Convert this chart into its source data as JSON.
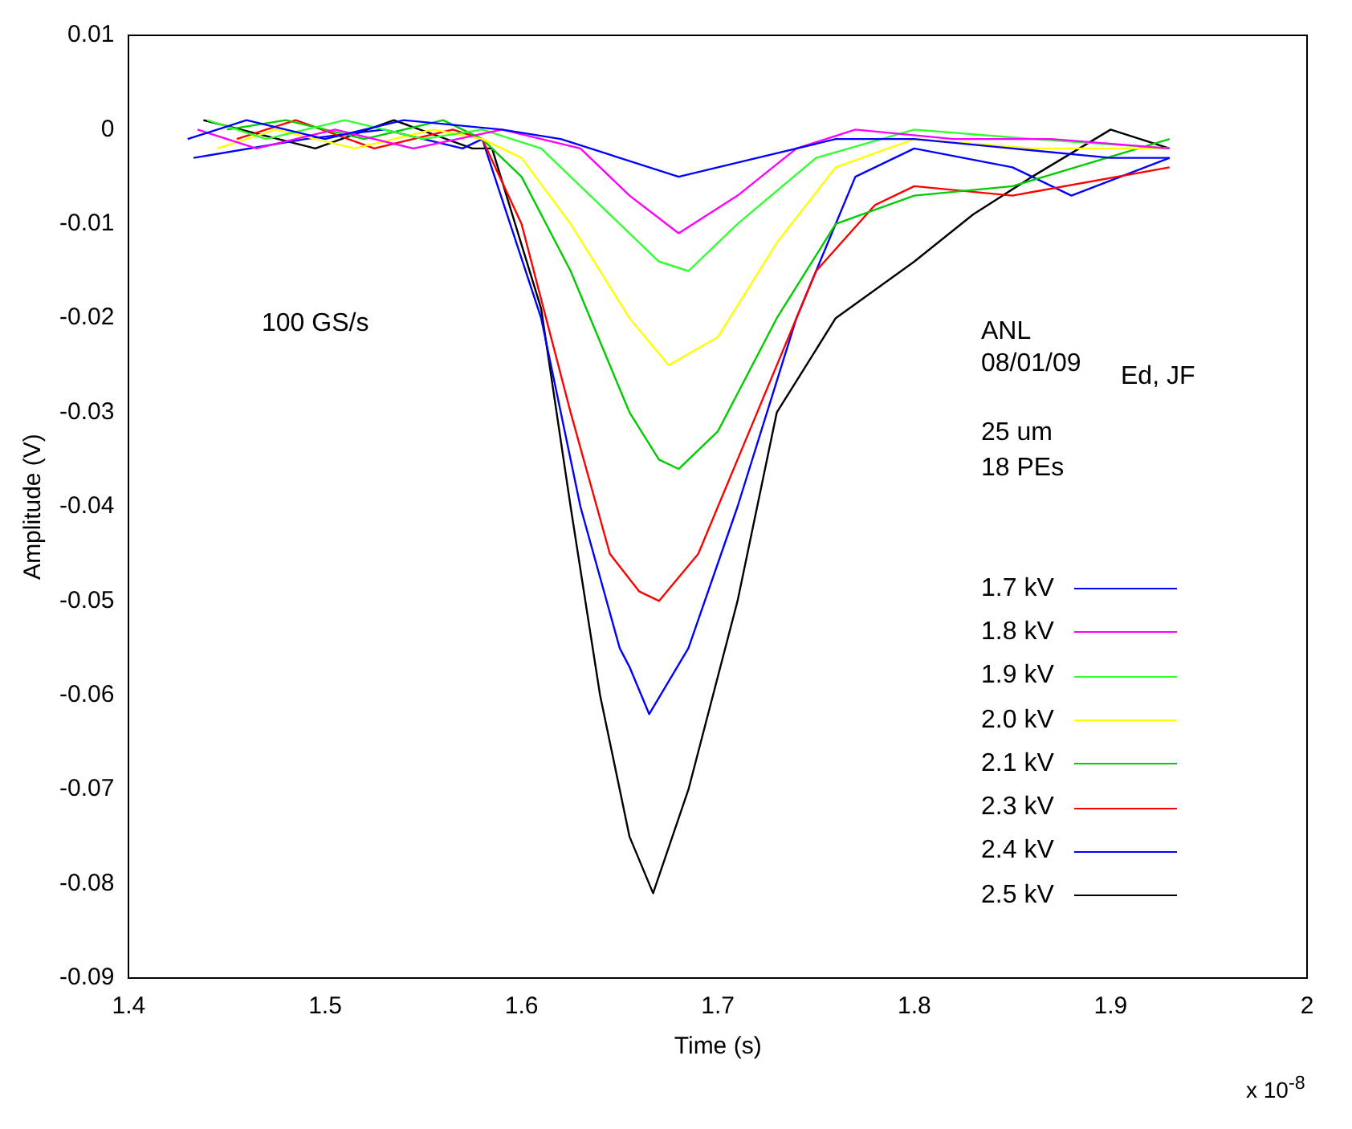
{
  "chart_data": {
    "type": "line",
    "xlabel": "Time (s)",
    "ylabel": "Amplitude (V)",
    "xlim": [
      1.4,
      2
    ],
    "xticks": [
      1.4,
      1.5,
      1.6,
      1.7,
      1.8,
      1.9,
      2
    ],
    "ylim": [
      -0.09,
      0.01
    ],
    "yticks": [
      -0.09,
      -0.08,
      -0.07,
      -0.06,
      -0.05,
      -0.04,
      -0.03,
      -0.02,
      -0.01,
      0,
      0.01
    ],
    "grid": false,
    "legend": "right",
    "marker": "none",
    "line_style": "solid",
    "annotations": [
      "100 GS/s",
      "ANL",
      "08/01/09",
      "Ed, JF",
      "25 um",
      "18 PEs",
      "x 10$^{-8}$"
    ],
    "series": [
      {
        "name": "1.7 kV",
        "color": "#0000ff",
        "x": [
          1.43,
          1.46,
          1.5,
          1.54,
          1.59,
          1.62,
          1.65,
          1.68,
          1.72,
          1.76,
          1.8,
          1.85,
          1.9,
          1.93
        ],
        "values": [
          -0.001,
          0.001,
          -0.001,
          0.001,
          0,
          -0.001,
          -0.003,
          -0.005,
          -0.003,
          -0.001,
          -0.001,
          -0.002,
          -0.003,
          -0.003
        ]
      },
      {
        "name": "1.8 kV",
        "color": "#ff00ff",
        "x": [
          1.435,
          1.465,
          1.505,
          1.545,
          1.59,
          1.63,
          1.655,
          1.68,
          1.71,
          1.74,
          1.77,
          1.82,
          1.87,
          1.93
        ],
        "values": [
          0,
          -0.002,
          0,
          -0.002,
          0,
          -0.002,
          -0.007,
          -0.011,
          -0.007,
          -0.002,
          0,
          -0.001,
          -0.001,
          -0.002
        ]
      },
      {
        "name": "1.9 kV",
        "color": "#33ff33",
        "x": [
          1.44,
          1.47,
          1.51,
          1.55,
          1.58,
          1.61,
          1.64,
          1.67,
          1.685,
          1.71,
          1.75,
          1.8,
          1.86,
          1.93
        ],
        "values": [
          0.001,
          -0.001,
          0.001,
          -0.001,
          0,
          -0.002,
          -0.008,
          -0.014,
          -0.015,
          -0.01,
          -0.003,
          0,
          -0.001,
          -0.002
        ]
      },
      {
        "name": "2.0 kV",
        "color": "#ffff00",
        "x": [
          1.445,
          1.475,
          1.515,
          1.555,
          1.58,
          1.6,
          1.625,
          1.655,
          1.675,
          1.7,
          1.73,
          1.76,
          1.8,
          1.86,
          1.93
        ],
        "values": [
          -0.002,
          0,
          -0.002,
          0,
          -0.001,
          -0.003,
          -0.01,
          -0.02,
          -0.025,
          -0.022,
          -0.012,
          -0.004,
          -0.001,
          -0.002,
          -0.002
        ]
      },
      {
        "name": "2.1 kV",
        "color": "#00cc00",
        "x": [
          1.45,
          1.48,
          1.52,
          1.56,
          1.58,
          1.6,
          1.625,
          1.655,
          1.67,
          1.68,
          1.7,
          1.73,
          1.76,
          1.8,
          1.85,
          1.93
        ],
        "values": [
          0,
          0.001,
          -0.001,
          0.001,
          -0.001,
          -0.005,
          -0.015,
          -0.03,
          -0.035,
          -0.036,
          -0.032,
          -0.02,
          -0.01,
          -0.007,
          -0.006,
          -0.001
        ]
      },
      {
        "name": "2.3 kV",
        "color": "#ff0000",
        "x": [
          1.455,
          1.485,
          1.525,
          1.565,
          1.58,
          1.6,
          1.625,
          1.645,
          1.66,
          1.67,
          1.69,
          1.72,
          1.75,
          1.78,
          1.8,
          1.85,
          1.93
        ],
        "values": [
          -0.001,
          0.001,
          -0.002,
          0,
          -0.001,
          -0.01,
          -0.03,
          -0.045,
          -0.049,
          -0.05,
          -0.045,
          -0.03,
          -0.015,
          -0.008,
          -0.006,
          -0.007,
          -0.004
        ]
      },
      {
        "name": "2.4 kV",
        "color": "#0000ff",
        "x": [
          1.433,
          1.49,
          1.53,
          1.57,
          1.58,
          1.61,
          1.63,
          1.65,
          1.655,
          1.665,
          1.685,
          1.71,
          1.74,
          1.77,
          1.8,
          1.85,
          1.88,
          1.93
        ],
        "values": [
          -0.003,
          -0.001,
          0,
          -0.002,
          -0.001,
          -0.02,
          -0.04,
          -0.055,
          -0.057,
          -0.062,
          -0.055,
          -0.04,
          -0.02,
          -0.005,
          -0.002,
          -0.004,
          -0.007,
          -0.003
        ]
      },
      {
        "name": "2.5 kV",
        "color": "#000000",
        "x": [
          1.438,
          1.495,
          1.535,
          1.575,
          1.585,
          1.61,
          1.625,
          1.64,
          1.655,
          1.667,
          1.685,
          1.71,
          1.73,
          1.76,
          1.8,
          1.83,
          1.86,
          1.9,
          1.93
        ],
        "values": [
          0.001,
          -0.002,
          0.001,
          -0.002,
          -0.002,
          -0.019,
          -0.04,
          -0.06,
          -0.075,
          -0.081,
          -0.07,
          -0.05,
          -0.03,
          -0.02,
          -0.014,
          -0.009,
          -0.005,
          0,
          -0.002
        ]
      }
    ]
  }
}
